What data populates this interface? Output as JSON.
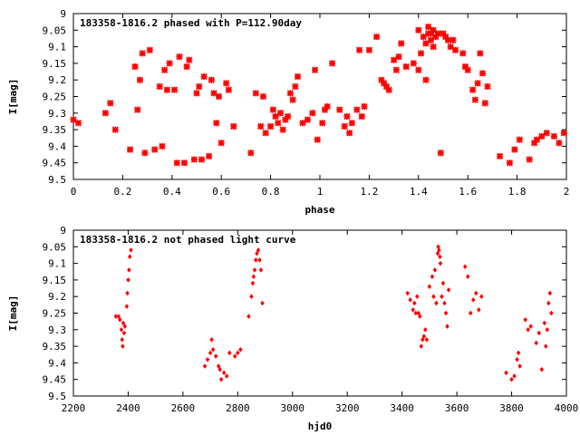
{
  "chart_data": [
    {
      "type": "scatter",
      "title": "183358-1816.2 phased with P=112.90day",
      "xlabel": "phase",
      "ylabel": "I[mag]",
      "xlim": [
        0,
        2
      ],
      "ylim": [
        9,
        9.5
      ],
      "y_inverted": true,
      "xticks": [
        "0",
        "0.2",
        "0.4",
        "0.6",
        "0.8",
        "1",
        "1.2",
        "1.4",
        "1.6",
        "1.8",
        "2"
      ],
      "yticks": [
        "9",
        "9.05",
        "9.1",
        "9.15",
        "9.2",
        "9.25",
        "9.3",
        "9.35",
        "9.4",
        "9.45",
        "9.5"
      ],
      "marker": "star",
      "color": "#ff0000",
      "series": [
        {
          "x": [
            0.0,
            0.02,
            0.13,
            0.15,
            0.17,
            0.23,
            0.25,
            0.26,
            0.27,
            0.28,
            0.29,
            0.31,
            0.33,
            0.35,
            0.36,
            0.37,
            0.38,
            0.39,
            0.41,
            0.42,
            0.43,
            0.45,
            0.46,
            0.47,
            0.49,
            0.5,
            0.51,
            0.52,
            0.53,
            0.55,
            0.56,
            0.57,
            0.58,
            0.59,
            0.6,
            0.62,
            0.63,
            0.65,
            0.72,
            0.74,
            0.76,
            0.77,
            0.78,
            0.8,
            0.81,
            0.82,
            0.83,
            0.84,
            0.85,
            0.86,
            0.87,
            0.88,
            0.89,
            0.9,
            0.91,
            0.93,
            0.95,
            0.97,
            0.98,
            0.99,
            1.01,
            1.02,
            1.03,
            1.05,
            1.08,
            1.1,
            1.11,
            1.12,
            1.13,
            1.15,
            1.16,
            1.17,
            1.18,
            1.2,
            1.23,
            1.25,
            1.26,
            1.27,
            1.28,
            1.3,
            1.31,
            1.32,
            1.33,
            1.35,
            1.38,
            1.4,
            1.4,
            1.41,
            1.42,
            1.43,
            1.43,
            1.44,
            1.44,
            1.45,
            1.45,
            1.46,
            1.46,
            1.47,
            1.48,
            1.49,
            1.5,
            1.51,
            1.52,
            1.53,
            1.54,
            1.55,
            1.58,
            1.59,
            1.6,
            1.62,
            1.63,
            1.64,
            1.65,
            1.66,
            1.67,
            1.68,
            1.73,
            1.77,
            1.79,
            1.81,
            1.85,
            1.87,
            1.88,
            1.9,
            1.92,
            1.95,
            1.97,
            1.99
          ],
          "y": [
            9.32,
            9.33,
            9.3,
            9.27,
            9.35,
            9.41,
            9.16,
            9.29,
            9.2,
            9.12,
            9.42,
            9.11,
            9.41,
            9.22,
            9.4,
            9.17,
            9.23,
            9.15,
            9.23,
            9.45,
            9.13,
            9.45,
            9.16,
            9.14,
            9.44,
            9.24,
            9.22,
            9.44,
            9.19,
            9.43,
            9.2,
            9.24,
            9.33,
            9.25,
            9.39,
            9.21,
            9.23,
            9.34,
            9.42,
            9.24,
            9.34,
            9.25,
            9.36,
            9.34,
            9.29,
            9.31,
            9.33,
            9.3,
            9.35,
            9.32,
            9.31,
            9.24,
            9.26,
            9.22,
            9.19,
            9.33,
            9.32,
            9.3,
            9.17,
            9.38,
            9.33,
            9.29,
            9.28,
            9.15,
            9.29,
            9.34,
            9.31,
            9.36,
            9.33,
            9.29,
            9.11,
            9.31,
            9.28,
            9.11,
            9.07,
            9.2,
            9.21,
            9.22,
            9.23,
            9.14,
            9.17,
            9.13,
            9.09,
            9.16,
            9.15,
            9.05,
            9.17,
            9.12,
            9.07,
            9.09,
            9.2,
            9.06,
            9.04,
            9.06,
            9.08,
            9.05,
            9.1,
            9.07,
            9.06,
            9.42,
            9.06,
            9.07,
            9.08,
            9.1,
            9.08,
            9.11,
            9.12,
            9.16,
            9.17,
            9.23,
            9.26,
            9.21,
            9.12,
            9.18,
            9.27,
            9.22,
            9.43,
            9.45,
            9.41,
            9.38,
            9.44,
            9.39,
            9.38,
            9.37,
            9.36,
            9.37,
            9.39,
            9.36
          ]
        }
      ]
    },
    {
      "type": "scatter",
      "title": "183358-1816.2 not phased light curve",
      "xlabel": "hjd0",
      "ylabel": "I[mag]",
      "xlim": [
        2200,
        4000
      ],
      "ylim": [
        9,
        9.5
      ],
      "y_inverted": true,
      "xticks": [
        "2200",
        "2400",
        "2600",
        "2800",
        "3000",
        "3200",
        "3400",
        "3600",
        "3800",
        "4000"
      ],
      "yticks": [
        "9",
        "9.05",
        "9.1",
        "9.15",
        "9.2",
        "9.25",
        "9.3",
        "9.35",
        "9.4",
        "9.45",
        "9.5"
      ],
      "marker": "diamond",
      "color": "#ff0000",
      "series": [
        {
          "x": [
            2355,
            2365,
            2370,
            2375,
            2378,
            2380,
            2382,
            2385,
            2388,
            2395,
            2397,
            2400,
            2403,
            2406,
            2410,
            2680,
            2690,
            2700,
            2705,
            2710,
            2720,
            2730,
            2735,
            2740,
            2750,
            2760,
            2770,
            2790,
            2800,
            2810,
            2840,
            2850,
            2855,
            2858,
            2862,
            2866,
            2870,
            2875,
            2880,
            2885,
            2890,
            3420,
            3430,
            3440,
            3445,
            3450,
            3455,
            3460,
            3465,
            3470,
            3475,
            3480,
            3485,
            3490,
            3500,
            3510,
            3515,
            3520,
            3525,
            3530,
            3532,
            3535,
            3538,
            3540,
            3545,
            3550,
            3555,
            3560,
            3565,
            3570,
            3630,
            3640,
            3650,
            3660,
            3670,
            3680,
            3690,
            3780,
            3800,
            3810,
            3820,
            3825,
            3830,
            3850,
            3860,
            3870,
            3890,
            3900,
            3910,
            3920,
            3925,
            3930,
            3935,
            3940,
            3945
          ],
          "y": [
            9.26,
            9.26,
            9.27,
            9.3,
            9.33,
            9.35,
            9.28,
            9.31,
            9.29,
            9.23,
            9.19,
            9.15,
            9.12,
            9.08,
            9.06,
            9.41,
            9.39,
            9.37,
            9.33,
            9.36,
            9.38,
            9.41,
            9.42,
            9.45,
            9.43,
            9.44,
            9.37,
            9.38,
            9.37,
            9.36,
            9.26,
            9.2,
            9.16,
            9.14,
            9.12,
            9.09,
            9.07,
            9.06,
            9.09,
            9.12,
            9.22,
            9.19,
            9.21,
            9.24,
            9.22,
            9.25,
            9.2,
            9.25,
            9.26,
            9.35,
            9.33,
            9.32,
            9.3,
            9.33,
            9.17,
            9.14,
            9.2,
            9.12,
            9.22,
            9.07,
            9.05,
            9.06,
            9.08,
            9.1,
            9.2,
            9.16,
            9.22,
            9.25,
            9.29,
            9.18,
            9.11,
            9.14,
            9.25,
            9.21,
            9.19,
            9.24,
            9.2,
            9.43,
            9.45,
            9.44,
            9.39,
            9.37,
            9.41,
            9.27,
            9.3,
            9.29,
            9.34,
            9.31,
            9.42,
            9.28,
            9.35,
            9.3,
            9.22,
            9.19,
            9.25
          ]
        }
      ]
    }
  ]
}
